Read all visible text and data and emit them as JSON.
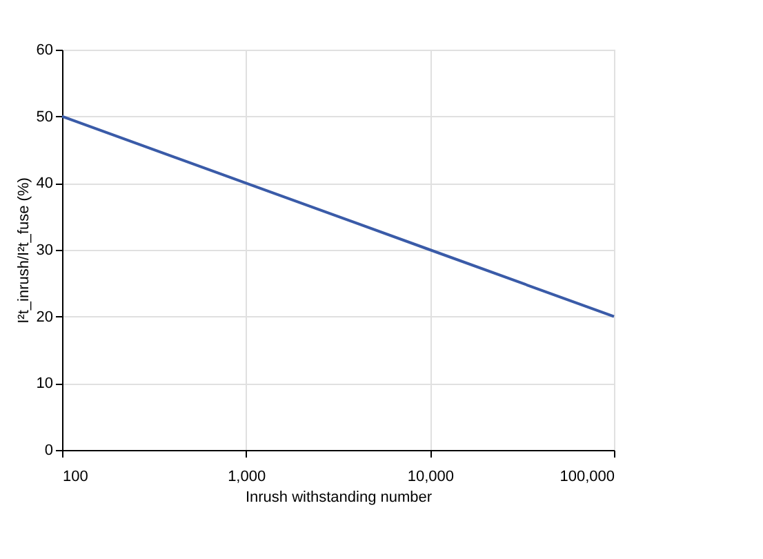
{
  "chart_data": {
    "type": "line",
    "xlabel": "Inrush withstanding number",
    "ylabel": "I²t_inrush/I²t_fuse (%)",
    "x": [
      100,
      1000,
      10000,
      100000
    ],
    "series": [
      {
        "color": "#3a5ba8",
        "values": [
          50,
          40,
          30,
          20
        ]
      }
    ],
    "log": "x",
    "xlim": [
      100,
      100000
    ],
    "xticks": [
      100,
      {
        "value": 1000,
        "label": "1,000"
      },
      {
        "value": 10000,
        "label": "10,000"
      },
      {
        "value": 100000,
        "label": "100,000"
      }
    ],
    "ylim": [
      0,
      60
    ],
    "yticks": [
      0,
      10,
      20,
      30,
      40,
      50,
      60
    ],
    "grid": true,
    "legend": false,
    "marker": "none",
    "line_style": "solid"
  }
}
